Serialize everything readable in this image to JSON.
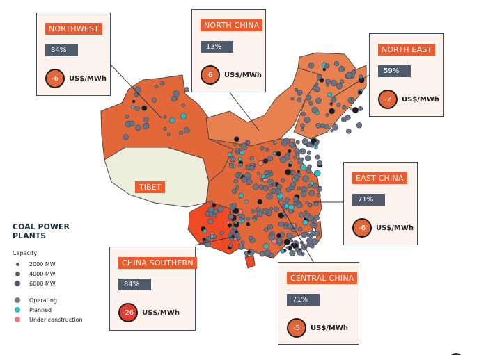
{
  "legend": {
    "title_line1": "COAL POWER",
    "title_line2": "PLANTS",
    "capacity_label": "Capacity",
    "capacity": [
      "2000 MW",
      "4000 MW",
      "6000 MW"
    ],
    "status": [
      {
        "label": "Operating",
        "color": "#7a7a7e"
      },
      {
        "label": "Planned",
        "color": "#2fbcc0"
      },
      {
        "label": "Under construction",
        "color": "#f07a7a"
      }
    ]
  },
  "tibet_label": "TIBET",
  "regions": [
    {
      "name": "NORTHWEST",
      "pct": "84%",
      "cost": "-6",
      "unit": "US$/MWh"
    },
    {
      "name": "NORTH CHINA",
      "pct": "13%",
      "cost": "6",
      "unit": "US$/MWh"
    },
    {
      "name": "NORTH EAST",
      "pct": "59%",
      "cost": "-2",
      "unit": "US$/MWh"
    },
    {
      "name": "EAST CHINA",
      "pct": "71%",
      "cost": "-6",
      "unit": "US$/MWh"
    },
    {
      "name": "CHINA SOUTHERN",
      "pct": "84%",
      "cost": "-26",
      "unit": "US$/MWh"
    },
    {
      "name": "CENTRAL CHINA",
      "pct": "71%",
      "cost": "-5",
      "unit": "US$/MWh"
    }
  ],
  "colors": {
    "label": "#ee5a2c",
    "pct_bg": "#505c6c",
    "region_main": "#e2683a",
    "region_north": "#e8804f",
    "region_south": "#f04a24",
    "tibet": "#eeeedc"
  }
}
